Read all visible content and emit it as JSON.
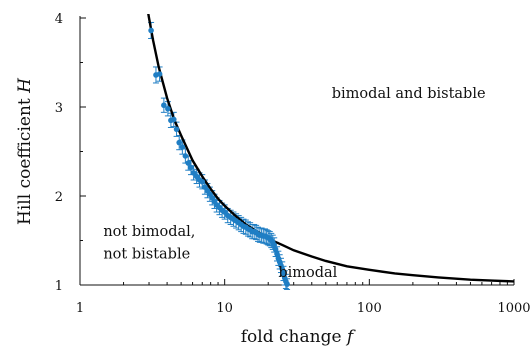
{
  "chart_data": {
    "type": "scatter",
    "xscale": "log",
    "xlim": [
      1,
      1000
    ],
    "ylim": [
      1,
      4
    ],
    "xticks": [
      1,
      10,
      100,
      1000
    ],
    "xtick_labels": [
      "1",
      "10",
      "100",
      "1000"
    ],
    "yticks": [
      1,
      2,
      3,
      4
    ],
    "ytick_labels": [
      "1",
      "2",
      "3",
      "4"
    ],
    "xlabel": "fold change",
    "xlabel_var": "f",
    "ylabel": "Hill coefficient",
    "ylabel_var": "H",
    "grid": false,
    "region_labels": [
      {
        "text": "bimodal and bistable",
        "x": 55,
        "y": 3.1
      },
      {
        "text": "not bimodal,",
        "x": 1.45,
        "y": 1.55
      },
      {
        "text": "not bistable",
        "x": 1.45,
        "y": 1.3
      },
      {
        "text": "bimodal",
        "x": 23.5,
        "y": 1.09
      }
    ],
    "curve": {
      "name": "",
      "color": "#000000",
      "x": [
        2.9,
        3.0,
        3.2,
        3.5,
        4,
        4.5,
        5,
        6,
        7,
        8,
        9,
        10,
        12,
        14,
        16,
        18,
        20,
        25,
        30,
        40,
        50,
        70,
        100,
        150,
        200,
        300,
        500,
        700,
        1000
      ],
      "y": [
        4.14,
        4.0,
        3.75,
        3.45,
        3.1,
        2.85,
        2.68,
        2.4,
        2.22,
        2.08,
        1.97,
        1.89,
        1.77,
        1.68,
        1.62,
        1.57,
        1.52,
        1.45,
        1.39,
        1.32,
        1.27,
        1.21,
        1.17,
        1.13,
        1.11,
        1.085,
        1.06,
        1.05,
        1.04
      ]
    },
    "series": [
      {
        "name": "",
        "color": "#1f7ec4",
        "x": [
          3.1,
          3.35,
          3.55,
          3.8,
          4.05,
          4.25,
          4.45,
          4.65,
          4.85,
          5.1,
          5.35,
          5.6,
          5.85,
          6.1,
          6.4,
          6.7,
          7.0,
          7.3,
          7.6,
          7.9,
          8.2,
          8.5,
          8.8,
          9.2,
          9.6,
          10.0,
          10.5,
          11.0,
          11.5,
          12.0,
          12.5,
          13.0,
          13.5,
          14.0,
          14.5,
          15.0,
          15.5,
          16.0,
          16.5,
          17.0,
          17.5,
          18.0,
          18.5,
          19.0,
          19.5,
          20.0,
          20.5,
          21.0,
          21.5,
          22.0,
          22.5,
          23.0,
          23.5,
          24.0,
          24.5,
          25.0,
          25.5,
          26.0,
          26.5,
          27.0
        ],
        "y": [
          3.86,
          3.36,
          3.37,
          3.02,
          2.98,
          2.85,
          2.86,
          2.75,
          2.6,
          2.55,
          2.45,
          2.37,
          2.32,
          2.26,
          2.22,
          2.18,
          2.16,
          2.1,
          2.06,
          2.02,
          1.98,
          1.94,
          1.9,
          1.87,
          1.84,
          1.82,
          1.78,
          1.76,
          1.74,
          1.72,
          1.7,
          1.68,
          1.66,
          1.65,
          1.63,
          1.62,
          1.6,
          1.6,
          1.59,
          1.57,
          1.56,
          1.56,
          1.55,
          1.55,
          1.54,
          1.53,
          1.52,
          1.5,
          1.48,
          1.45,
          1.4,
          1.35,
          1.3,
          1.26,
          1.22,
          1.18,
          1.13,
          1.08,
          1.04,
          1.01
        ],
        "yerr": [
          0.09,
          0.09,
          0.08,
          0.08,
          0.08,
          0.08,
          0.08,
          0.08,
          0.08,
          0.08,
          0.08,
          0.08,
          0.08,
          0.08,
          0.08,
          0.08,
          0.08,
          0.08,
          0.08,
          0.08,
          0.08,
          0.08,
          0.08,
          0.08,
          0.08,
          0.08,
          0.08,
          0.08,
          0.08,
          0.08,
          0.08,
          0.08,
          0.08,
          0.08,
          0.08,
          0.08,
          0.08,
          0.08,
          0.08,
          0.08,
          0.08,
          0.08,
          0.08,
          0.08,
          0.08,
          0.08,
          0.08,
          0.08,
          0.08,
          0.08,
          0.08,
          0.08,
          0.08,
          0.08,
          0.08,
          0.08,
          0.08,
          0.08,
          0.08,
          0.06
        ]
      }
    ]
  }
}
